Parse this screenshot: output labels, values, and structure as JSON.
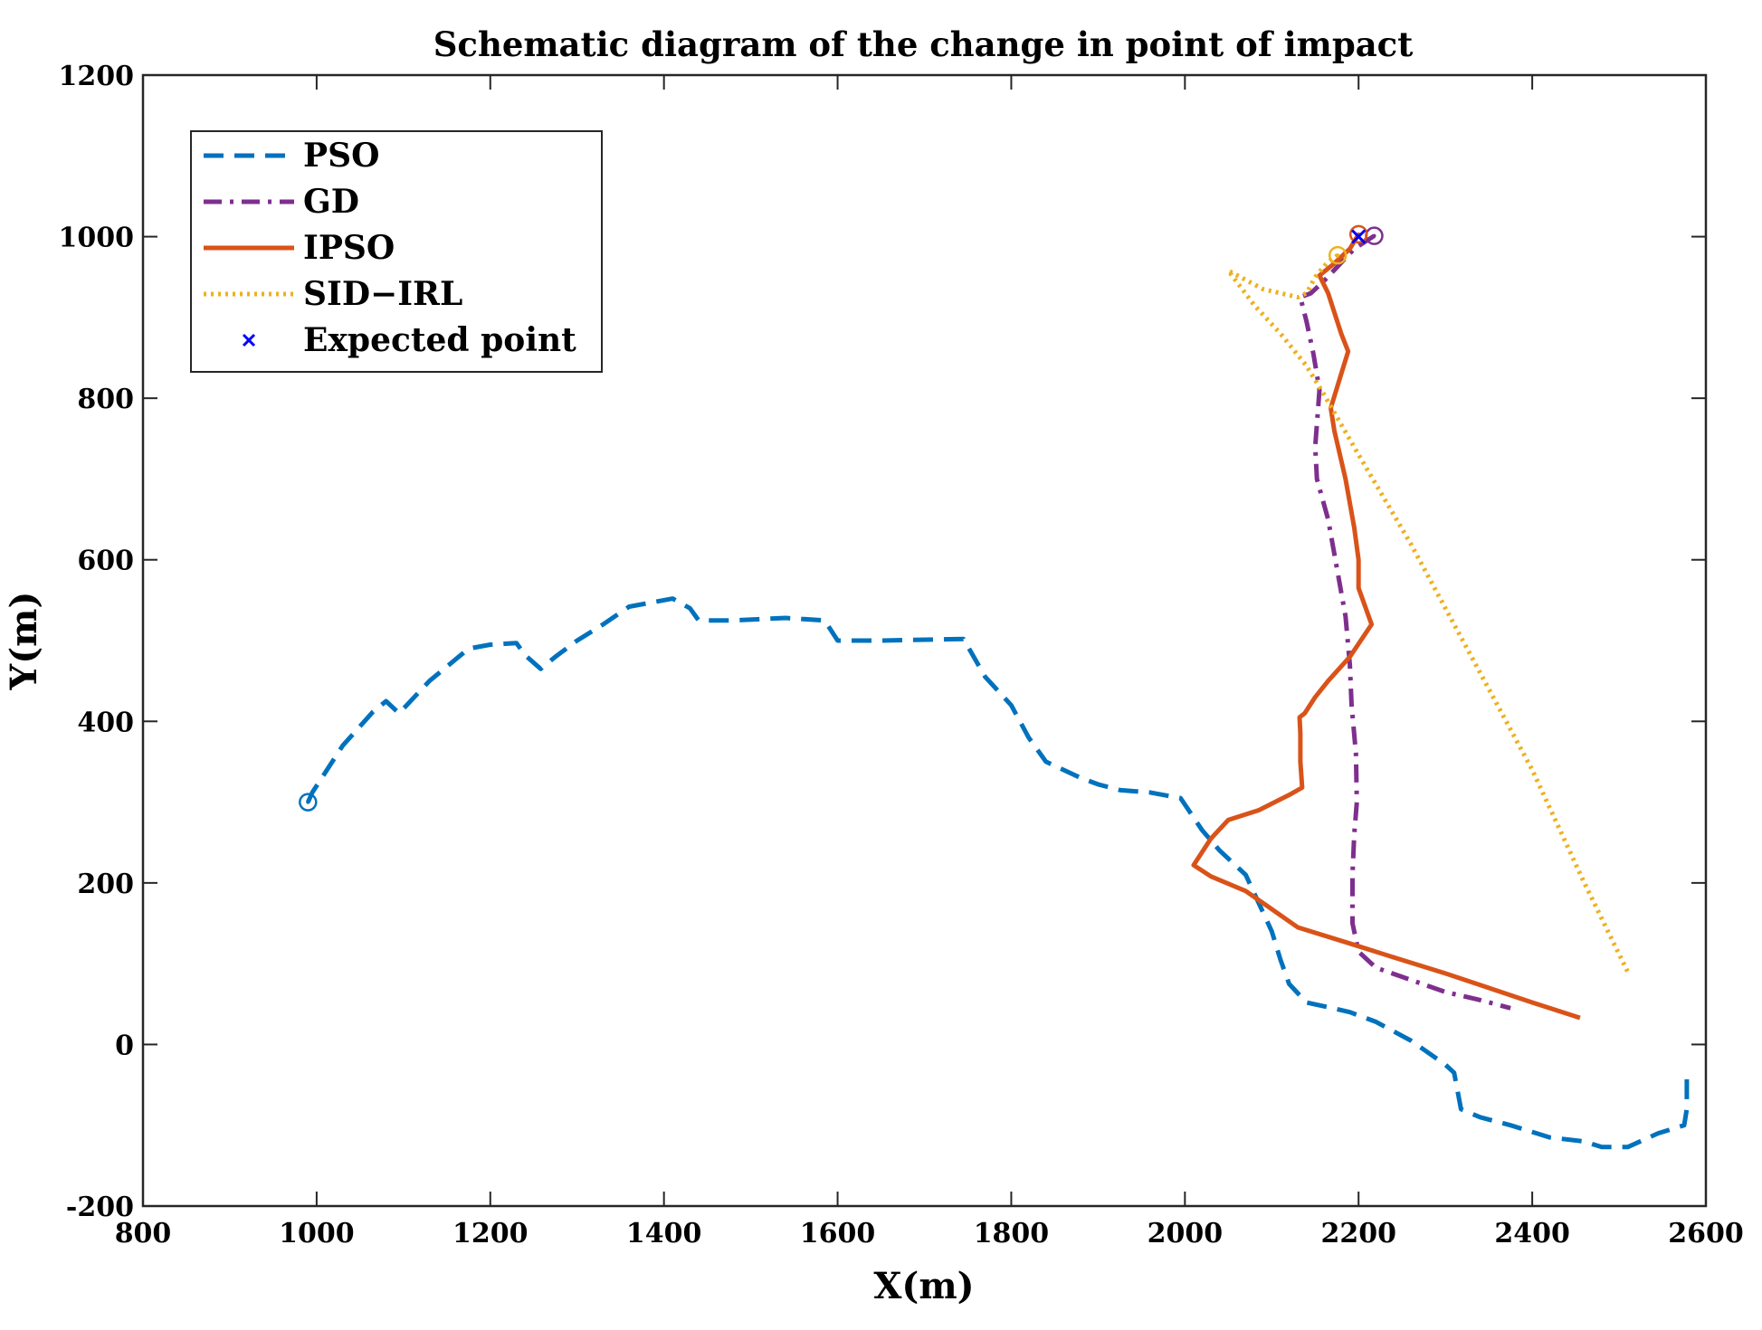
{
  "chart_data": {
    "type": "line",
    "title": "Schematic diagram of the change in point of impact",
    "xlabel": "X(m)",
    "ylabel": "Y(m)",
    "xlim": [
      800,
      2600
    ],
    "ylim": [
      -200,
      1200
    ],
    "xticks": [
      800,
      1000,
      1200,
      1400,
      1600,
      1800,
      2000,
      2200,
      2400,
      2600
    ],
    "yticks": [
      -200,
      0,
      200,
      400,
      600,
      800,
      1000,
      1200
    ],
    "grid": false,
    "legend_position": "top-left",
    "series": [
      {
        "name": "PSO",
        "color": "#0072BD",
        "style": "dashed",
        "start_marker": [
          990,
          300
        ],
        "points": [
          [
            995,
            312
          ],
          [
            1030,
            370
          ],
          [
            1065,
            412
          ],
          [
            1080,
            425
          ],
          [
            1095,
            410
          ],
          [
            1130,
            450
          ],
          [
            1175,
            490
          ],
          [
            1200,
            495
          ],
          [
            1230,
            497
          ],
          [
            1240,
            482
          ],
          [
            1258,
            465
          ],
          [
            1275,
            480
          ],
          [
            1300,
            500
          ],
          [
            1330,
            520
          ],
          [
            1360,
            542
          ],
          [
            1410,
            552
          ],
          [
            1430,
            540
          ],
          [
            1440,
            525
          ],
          [
            1480,
            525
          ],
          [
            1540,
            528
          ],
          [
            1585,
            525
          ],
          [
            1600,
            500
          ],
          [
            1650,
            500
          ],
          [
            1745,
            502
          ],
          [
            1770,
            455
          ],
          [
            1800,
            420
          ],
          [
            1820,
            380
          ],
          [
            1840,
            350
          ],
          [
            1880,
            330
          ],
          [
            1900,
            322
          ],
          [
            1925,
            315
          ],
          [
            1960,
            312
          ],
          [
            1995,
            305
          ],
          [
            2020,
            265
          ],
          [
            2040,
            240
          ],
          [
            2070,
            210
          ],
          [
            2100,
            140
          ],
          [
            2110,
            105
          ],
          [
            2120,
            75
          ],
          [
            2140,
            52
          ],
          [
            2170,
            45
          ],
          [
            2190,
            40
          ],
          [
            2220,
            28
          ],
          [
            2260,
            5
          ],
          [
            2300,
            -25
          ],
          [
            2310,
            -35
          ],
          [
            2318,
            -80
          ],
          [
            2340,
            -90
          ],
          [
            2375,
            -100
          ],
          [
            2420,
            -115
          ],
          [
            2460,
            -120
          ],
          [
            2480,
            -127
          ],
          [
            2510,
            -127
          ],
          [
            2545,
            -110
          ],
          [
            2575,
            -100
          ],
          [
            2578,
            -80
          ],
          [
            2578,
            -55
          ],
          [
            2578,
            -40
          ]
        ]
      },
      {
        "name": "GD",
        "color": "#7E2F8E",
        "style": "dashdot",
        "start_marker": [
          2218,
          1001
        ],
        "points": [
          [
            2208,
            994
          ],
          [
            2195,
            985
          ],
          [
            2175,
            962
          ],
          [
            2160,
            945
          ],
          [
            2145,
            930
          ],
          [
            2133,
            925
          ],
          [
            2140,
            895
          ],
          [
            2148,
            855
          ],
          [
            2155,
            810
          ],
          [
            2150,
            740
          ],
          [
            2152,
            700
          ],
          [
            2165,
            650
          ],
          [
            2175,
            590
          ],
          [
            2185,
            530
          ],
          [
            2190,
            470
          ],
          [
            2192,
            420
          ],
          [
            2197,
            360
          ],
          [
            2198,
            300
          ],
          [
            2195,
            260
          ],
          [
            2193,
            210
          ],
          [
            2193,
            150
          ],
          [
            2200,
            115
          ],
          [
            2220,
            95
          ],
          [
            2260,
            80
          ],
          [
            2300,
            65
          ],
          [
            2340,
            55
          ],
          [
            2375,
            45
          ]
        ]
      },
      {
        "name": "IPSO",
        "color": "#D95319",
        "style": "solid",
        "start_marker": [
          2200,
          1003
        ],
        "points": [
          [
            2190,
            985
          ],
          [
            2170,
            965
          ],
          [
            2155,
            952
          ],
          [
            2165,
            930
          ],
          [
            2180,
            880
          ],
          [
            2188,
            858
          ],
          [
            2180,
            830
          ],
          [
            2168,
            788
          ],
          [
            2172,
            760
          ],
          [
            2185,
            700
          ],
          [
            2195,
            640
          ],
          [
            2200,
            600
          ],
          [
            2200,
            565
          ],
          [
            2215,
            520
          ],
          [
            2190,
            480
          ],
          [
            2165,
            450
          ],
          [
            2150,
            430
          ],
          [
            2138,
            410
          ],
          [
            2132,
            405
          ],
          [
            2133,
            385
          ],
          [
            2133,
            350
          ],
          [
            2135,
            318
          ],
          [
            2122,
            310
          ],
          [
            2085,
            290
          ],
          [
            2050,
            278
          ],
          [
            2030,
            255
          ],
          [
            2010,
            222
          ],
          [
            2030,
            208
          ],
          [
            2070,
            190
          ],
          [
            2130,
            145
          ],
          [
            2190,
            125
          ],
          [
            2240,
            108
          ],
          [
            2300,
            88
          ],
          [
            2350,
            70
          ],
          [
            2400,
            52
          ],
          [
            2455,
            33
          ]
        ]
      },
      {
        "name": "SID−IRL",
        "color": "#EDB120",
        "style": "dotted",
        "start_marker": [
          2176,
          977
        ],
        "points": [
          [
            2164,
            968
          ],
          [
            2150,
            950
          ],
          [
            2140,
            930
          ],
          [
            2130,
            925
          ],
          [
            2090,
            935
          ],
          [
            2050,
            958
          ],
          [
            2080,
            915
          ],
          [
            2110,
            880
          ],
          [
            2140,
            840
          ],
          [
            2160,
            805
          ],
          [
            2200,
            730
          ],
          [
            2260,
            620
          ],
          [
            2330,
            480
          ],
          [
            2400,
            340
          ],
          [
            2460,
            200
          ],
          [
            2510,
            90
          ]
        ]
      }
    ],
    "expected_point": {
      "name": "Expected point",
      "color": "#0000FF",
      "x": 2200,
      "y": 1000
    }
  }
}
